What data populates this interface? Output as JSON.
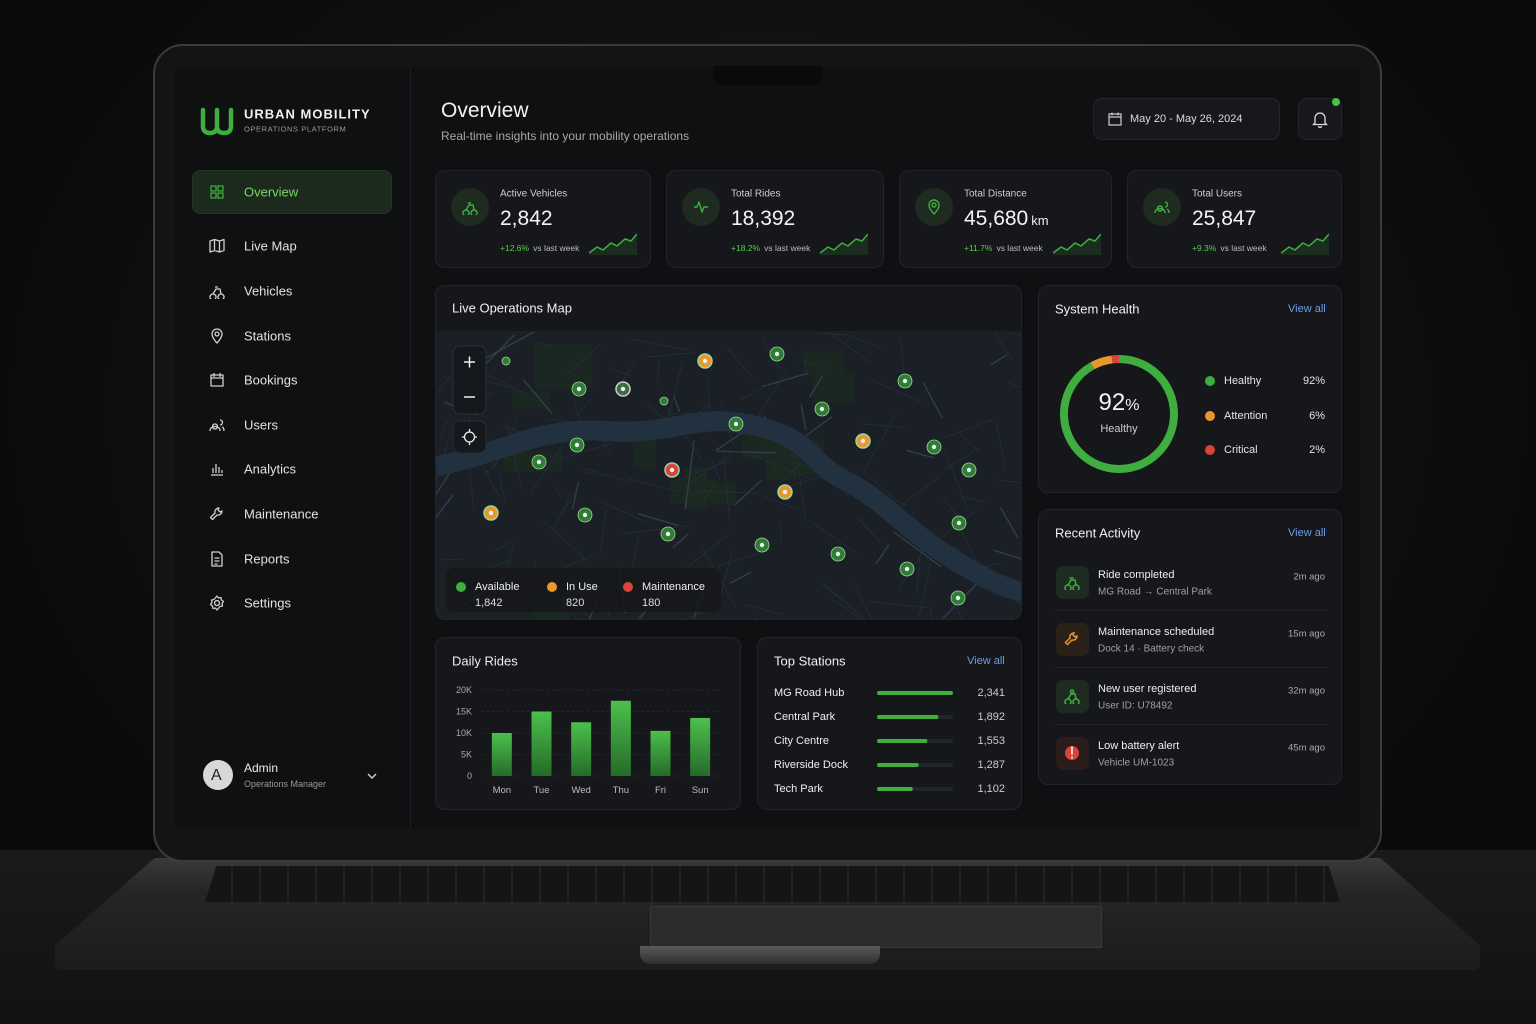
{
  "brand": {
    "name": "URBAN MOBILITY",
    "tagline": "OPERATIONS PLATFORM"
  },
  "nav": [
    "Overview",
    "Live Map",
    "Vehicles",
    "Stations",
    "Bookings",
    "Users",
    "Analytics",
    "Maintenance",
    "Reports",
    "Settings"
  ],
  "user": {
    "initial": "A",
    "name": "Admin",
    "role": "Operations Manager"
  },
  "header": {
    "title": "Overview",
    "subtitle": "Real-time insights into your mobility operations",
    "date_range": "May 20 - May 26, 2024"
  },
  "kpis": [
    {
      "label": "Active Vehicles",
      "value": "2,842",
      "change": "+12.6%",
      "compare": "vs last week"
    },
    {
      "label": "Total Rides",
      "value": "18,392",
      "change": "+18.2%",
      "compare": "vs last week"
    },
    {
      "label": "Total Distance",
      "value": "45,680",
      "unit": "km",
      "change": "+11.7%",
      "compare": "vs last week"
    },
    {
      "label": "Total Users",
      "value": "25,847",
      "change": "+9.3%",
      "compare": "vs last week"
    }
  ],
  "map": {
    "title": "Live Operations Map",
    "legend": [
      {
        "name": "Available",
        "count": "1,842",
        "color": "#3fae3f"
      },
      {
        "name": "In Use",
        "count": "820",
        "color": "#e8962e"
      },
      {
        "name": "Maintenance",
        "count": "180",
        "color": "#d9443a"
      }
    ]
  },
  "system_health": {
    "title": "System Health",
    "link": "View all",
    "center_value": 92,
    "center_unit": "%",
    "center_label": "Healthy",
    "segments": [
      {
        "name": "Healthy",
        "value": 92,
        "value_label": "92%",
        "color": "#3fae3f"
      },
      {
        "name": "Attention",
        "value": 6,
        "value_label": "6%",
        "color": "#e8962e"
      },
      {
        "name": "Critical",
        "value": 2,
        "value_label": "2%",
        "color": "#d9443a"
      }
    ]
  },
  "recent_activity": {
    "title": "Recent Activity",
    "link": "View all",
    "items": [
      {
        "title": "Ride completed",
        "detail": "MG Road → Central Park",
        "time": "2m ago"
      },
      {
        "title": "Maintenance scheduled",
        "detail": "Dock 14 · Battery check",
        "time": "15m ago"
      },
      {
        "title": "New user registered",
        "detail": "User ID: U78492",
        "time": "32m ago"
      },
      {
        "title": "Low battery alert",
        "detail": "Vehicle UM-1023",
        "time": "45m ago"
      }
    ]
  },
  "daily_rides": {
    "title": "Daily Rides",
    "categories": [
      "Mon",
      "Tue",
      "Wed",
      "Thu",
      "Fri",
      "Sun"
    ],
    "values": [
      10000,
      15000,
      12500,
      17500,
      10500,
      13500
    ],
    "ylim": [
      0,
      20000
    ],
    "yticks": [
      0,
      {
        "value": 5000,
        "label": "5K"
      },
      {
        "value": 10000,
        "label": "10K"
      },
      {
        "value": 15000,
        "label": "15K"
      },
      {
        "value": 20000,
        "label": "20K"
      }
    ],
    "color": "#3fae3f"
  },
  "top_stations": {
    "title": "Top Stations",
    "link": "View all",
    "names": [
      "MG Road Hub",
      "Central Park",
      "City Centre",
      "Riverside Dock",
      "Tech Park"
    ],
    "values": [
      2341,
      1892,
      1553,
      1287,
      1102
    ],
    "value_labels": [
      "2,341",
      "1,892",
      "1,553",
      "1,287",
      "1,102"
    ],
    "color": "#3fae3f"
  }
}
